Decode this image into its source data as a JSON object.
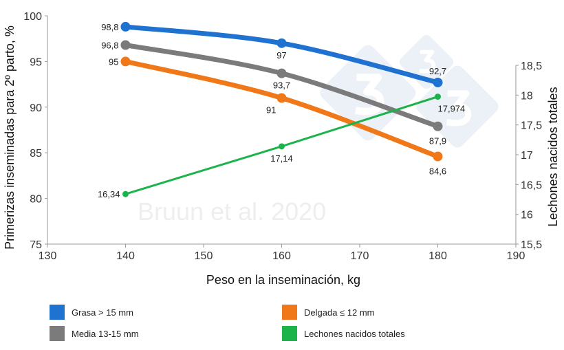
{
  "chart_data": {
    "type": "line",
    "watermark": "Bruun et al. 2020",
    "logo": "333",
    "xlabel": "Peso en la inseminación, kg",
    "ylabel": "Primerizas inseminadas para 2º parto, %",
    "y2label": "Lechones nacidos totales",
    "xlim": [
      130,
      190
    ],
    "ylim": [
      75,
      100
    ],
    "y2lim": [
      15.5,
      18.5
    ],
    "x_ticks": [
      "130",
      "140",
      "150",
      "160",
      "170",
      "180",
      "190"
    ],
    "y_ticks": [
      "75",
      "80",
      "85",
      "90",
      "95",
      "100"
    ],
    "y2_ticks": [
      "15,5",
      "16",
      "16,5",
      "17",
      "17,5",
      "18",
      "18,5"
    ],
    "grid": false,
    "legend_position": "bottom",
    "series": [
      {
        "name": "Grasa > 15 mm",
        "color": "#1f72cf",
        "axis": "left",
        "x": [
          140,
          160,
          180
        ],
        "values": [
          98.8,
          97,
          92.7
        ],
        "labels": [
          "98,8",
          "97",
          "92,7"
        ]
      },
      {
        "name": "Media 13-15 mm",
        "color": "#7b7b7b",
        "axis": "left",
        "x": [
          140,
          160,
          180
        ],
        "values": [
          96.8,
          93.7,
          87.9
        ],
        "labels": [
          "96,8",
          "93,7",
          "87,9"
        ]
      },
      {
        "name": "Delgada ≤ 12 mm",
        "color": "#f07818",
        "axis": "left",
        "x": [
          140,
          160,
          180
        ],
        "values": [
          95,
          91,
          84.6
        ],
        "labels": [
          "95",
          "91",
          "84,6"
        ]
      },
      {
        "name": "Lechones nacidos totales",
        "color": "#1cb34a",
        "axis": "right",
        "x": [
          140,
          160,
          180
        ],
        "values": [
          16.34,
          17.14,
          17.974
        ],
        "labels": [
          "16,34",
          "17,14",
          "17,974"
        ]
      }
    ]
  }
}
